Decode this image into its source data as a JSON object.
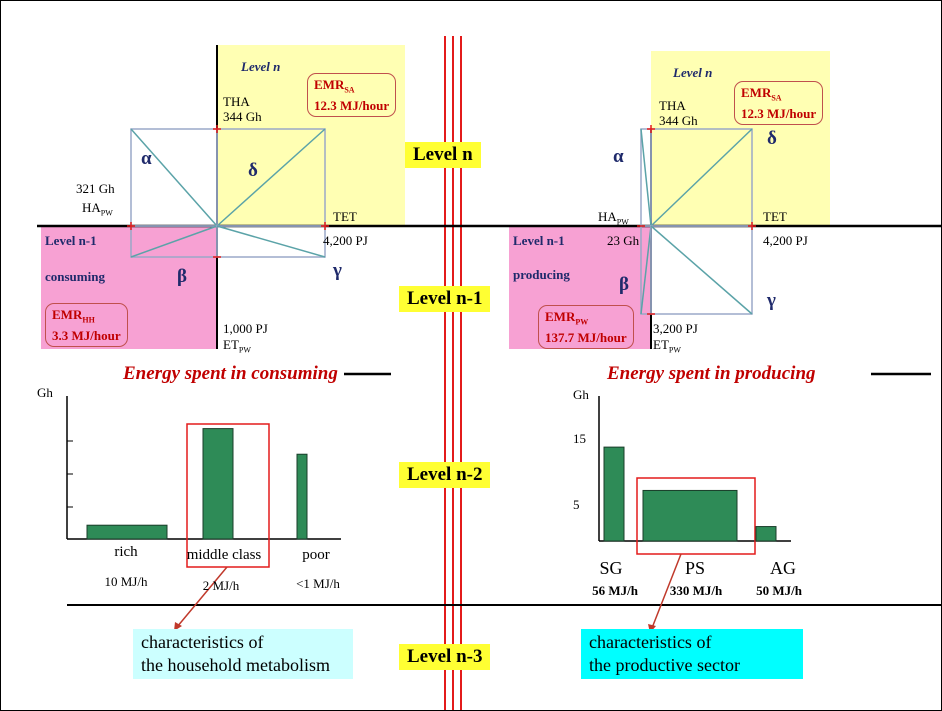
{
  "levels": {
    "n": "Level n",
    "n1": "Level n-1",
    "n2": "Level n-2",
    "n3": "Level n-3"
  },
  "left_quadrant": {
    "level_n_label": "Level n",
    "tha_label": "THA",
    "tha_value": "344 Gh",
    "emr_sa_line1": "EMR",
    "emr_sa_sub": "SA",
    "emr_sa_line2": "12.3 MJ/hour",
    "alpha": "α",
    "delta": "δ",
    "beta": "β",
    "gamma": "γ",
    "ha_value": "321 Gh",
    "ha_label": "HA",
    "ha_sub": "PW",
    "tet_label": "TET",
    "tet_value": "4,200 PJ",
    "level_n1_label": "Level n-1",
    "consuming": "consuming",
    "emr_hh_line1": "EMR",
    "emr_hh_sub": "HH",
    "emr_hh_line2": "3.3 MJ/hour",
    "et_value": "1,000 PJ",
    "et_label": "ET",
    "et_sub": "PW"
  },
  "right_quadrant": {
    "level_n_label": "Level n",
    "tha_label": "THA",
    "tha_value": "344 Gh",
    "emr_sa_line1": "EMR",
    "emr_sa_sub": "SA",
    "emr_sa_line2": "12.3 MJ/hour",
    "alpha": "α",
    "delta": "δ",
    "beta": "β",
    "gamma": "γ",
    "ha_label": "HA",
    "ha_sub": "PW",
    "ha_value": "23 Gh",
    "tet_label": "TET",
    "tet_value": "4,200 PJ",
    "level_n1_label": "Level n-1",
    "producing": "producing",
    "emr_pw_line1": "EMR",
    "emr_pw_sub": "PW",
    "emr_pw_line2": "137.7 MJ/hour",
    "et_value": "3,200 PJ",
    "et_label": "ET",
    "et_sub": "PW"
  },
  "banners": {
    "consuming": "Energy spent in consuming",
    "producing": "Energy spent in producing"
  },
  "left_chart": {
    "ylabel": "Gh",
    "categories": [
      "rich",
      "middle class",
      "poor"
    ],
    "rates": [
      "10 MJ/h",
      "2 MJ/h",
      "<1 MJ/h"
    ]
  },
  "right_chart": {
    "ylabel": "Gh",
    "yticks": [
      "15",
      "5"
    ],
    "categories": [
      "SG",
      "PS",
      "AG"
    ],
    "rates": [
      "56 MJ/h",
      "330 MJ/h",
      "50 MJ/h"
    ]
  },
  "chart_data": [
    {
      "type": "bar",
      "categories": [
        "rich",
        "middle class",
        "poor"
      ],
      "values": [
        0.7,
        5.6,
        4.3
      ],
      "ylabel": "Gh",
      "ylim": [
        0,
        7
      ]
    },
    {
      "type": "bar",
      "categories": [
        "SG",
        "PS",
        "AG"
      ],
      "values": [
        13,
        7,
        2
      ],
      "ylabel": "Gh",
      "ylim": [
        0,
        18
      ]
    }
  ],
  "notes": {
    "household_line1": "characteristics of",
    "household_line2": "the household metabolism",
    "productive_line1": "characteristics of",
    "productive_line2": "the productive sector"
  },
  "colors": {
    "yellow_area": "#ffffb3",
    "pink_area": "#f7a1d3",
    "bar_green": "#2e8b57",
    "level_yellow": "#ffff33",
    "household_box": "#ccffff",
    "productive_box": "#00ffff",
    "red": "#c00000"
  }
}
